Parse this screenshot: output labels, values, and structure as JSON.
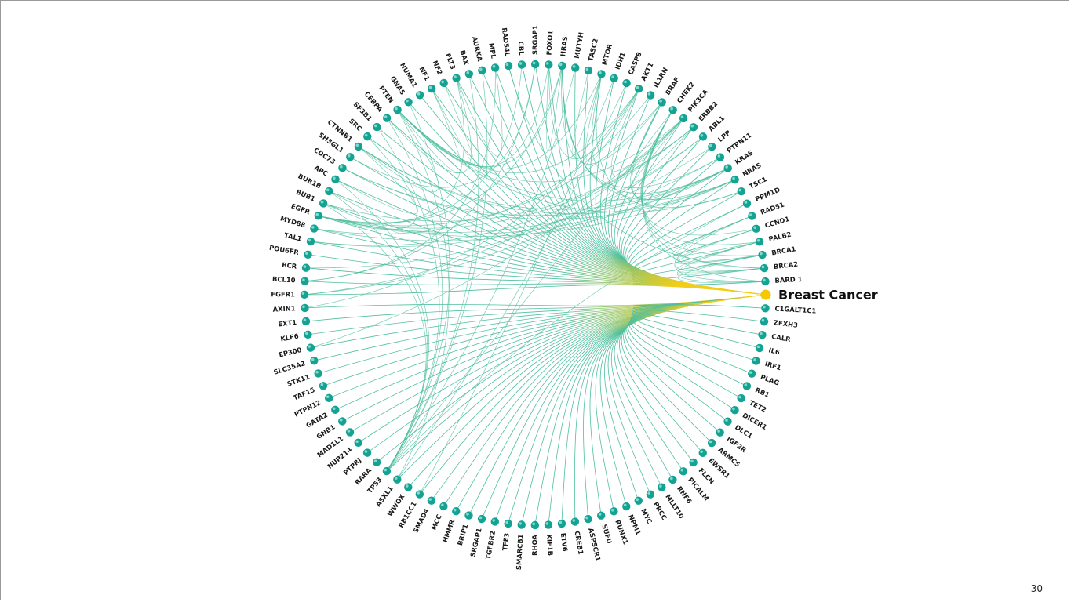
{
  "hub": {
    "label": "Breast Cancer",
    "color": "#f5c800"
  },
  "node_color": "#14a393",
  "link_colors": {
    "gene_gene": "#4fbf9f",
    "hub": "#f2cd1a"
  },
  "genes": [
    "BARD 1",
    "BRCA2",
    "BRCA1",
    "PALB2",
    "CCND1",
    "RAD51",
    "PPM1D",
    "TSC1",
    "NRAS",
    "KRAS",
    "PTPN11",
    "LPP",
    "ABL1",
    "ERBB2",
    "PIK3CA",
    "CHEK2",
    "BRAF",
    "IL1RN",
    "AKT1",
    "CASP8",
    "IDH1",
    "MTOR",
    "TASC2",
    "MUTYH",
    "HRAS",
    "FOXO1",
    "SRGAP1",
    "CBL",
    "RAD54L",
    "MPL",
    "AURKA",
    "BAX",
    "FLT3",
    "NF2",
    "NF1",
    "NUMA1",
    "GNAS",
    "PTEN",
    "CEBPA",
    "SF3B1",
    "SRC",
    "CTNNB1",
    "SH3GL1",
    "CDC73",
    "APC",
    "BUB1B",
    "BUB1",
    "EGFR",
    "MYD88",
    "TAL1",
    "POU6FR",
    "BCR",
    "BCL10",
    "FGFR1",
    "AXIN1",
    "EXT1",
    "KLF6",
    "EP300",
    "SLC35A2",
    "STK11",
    "TAF15",
    "PTPN12",
    "GATA2",
    "GNB1",
    "MAD1L1",
    "NUP214",
    "PTPRJ",
    "RARA",
    "TP53",
    "ASXL1",
    "WWOX",
    "RB1CC1",
    "SMAD4",
    "MCC",
    "HMMR",
    "BRIP1",
    "SRGAP1",
    "TGFBR2",
    "TFE3",
    "SMARCB1",
    "RHOA",
    "KIF1B",
    "ETV6",
    "CREB1",
    "ASPSCR1",
    "SUFU",
    "RUNX1",
    "NPM1",
    "MYC",
    "PRCC",
    "MLLT10",
    "RNF6",
    "PICALM",
    "FLCN",
    "EWSR1",
    "ARMC5",
    "IGF2R",
    "DLC1",
    "DICER1",
    "TET2",
    "RB1",
    "PLAG",
    "IRF1",
    "IL6",
    "CALR",
    "ZFXH3",
    "C1GALT1C1"
  ],
  "gene_links": [
    [
      0,
      15
    ],
    [
      1,
      15
    ],
    [
      2,
      15
    ],
    [
      3,
      15
    ],
    [
      4,
      15
    ],
    [
      0,
      2
    ],
    [
      1,
      2
    ],
    [
      0,
      3
    ],
    [
      1,
      3
    ],
    [
      2,
      4
    ],
    [
      3,
      5
    ],
    [
      0,
      5
    ],
    [
      1,
      4
    ],
    [
      2,
      5
    ],
    [
      9,
      47
    ],
    [
      9,
      48
    ],
    [
      9,
      37
    ],
    [
      9,
      43
    ],
    [
      9,
      41
    ],
    [
      8,
      47
    ],
    [
      8,
      41
    ],
    [
      8,
      43
    ],
    [
      7,
      21
    ],
    [
      7,
      37
    ],
    [
      10,
      47
    ],
    [
      10,
      24
    ],
    [
      13,
      14
    ],
    [
      13,
      47
    ],
    [
      13,
      46
    ],
    [
      13,
      49
    ],
    [
      14,
      37
    ],
    [
      14,
      18
    ],
    [
      14,
      53
    ],
    [
      14,
      57
    ],
    [
      18,
      37
    ],
    [
      18,
      21
    ],
    [
      18,
      54
    ],
    [
      21,
      37
    ],
    [
      21,
      14
    ],
    [
      24,
      9
    ],
    [
      24,
      8
    ],
    [
      24,
      47
    ],
    [
      24,
      37
    ],
    [
      24,
      25
    ],
    [
      19,
      69
    ],
    [
      20,
      71
    ],
    [
      15,
      68
    ],
    [
      16,
      9
    ],
    [
      16,
      8
    ],
    [
      16,
      24
    ],
    [
      16,
      47
    ],
    [
      17,
      48
    ],
    [
      22,
      21
    ],
    [
      23,
      68
    ],
    [
      25,
      37
    ],
    [
      25,
      18
    ],
    [
      26,
      52
    ],
    [
      27,
      47
    ],
    [
      28,
      1
    ],
    [
      29,
      52
    ],
    [
      30,
      68
    ],
    [
      31,
      68
    ],
    [
      32,
      29
    ],
    [
      32,
      47
    ],
    [
      33,
      34
    ],
    [
      34,
      37
    ],
    [
      36,
      68
    ],
    [
      37,
      69
    ],
    [
      38,
      68
    ],
    [
      38,
      32
    ],
    [
      39,
      68
    ],
    [
      40,
      47
    ],
    [
      41,
      37
    ],
    [
      41,
      44
    ],
    [
      42,
      26
    ],
    [
      44,
      68
    ],
    [
      45,
      68
    ],
    [
      45,
      46
    ],
    [
      46,
      68
    ],
    [
      11,
      49
    ],
    [
      12,
      51
    ],
    [
      12,
      53
    ],
    [
      6,
      68
    ]
  ],
  "page_number": "30"
}
